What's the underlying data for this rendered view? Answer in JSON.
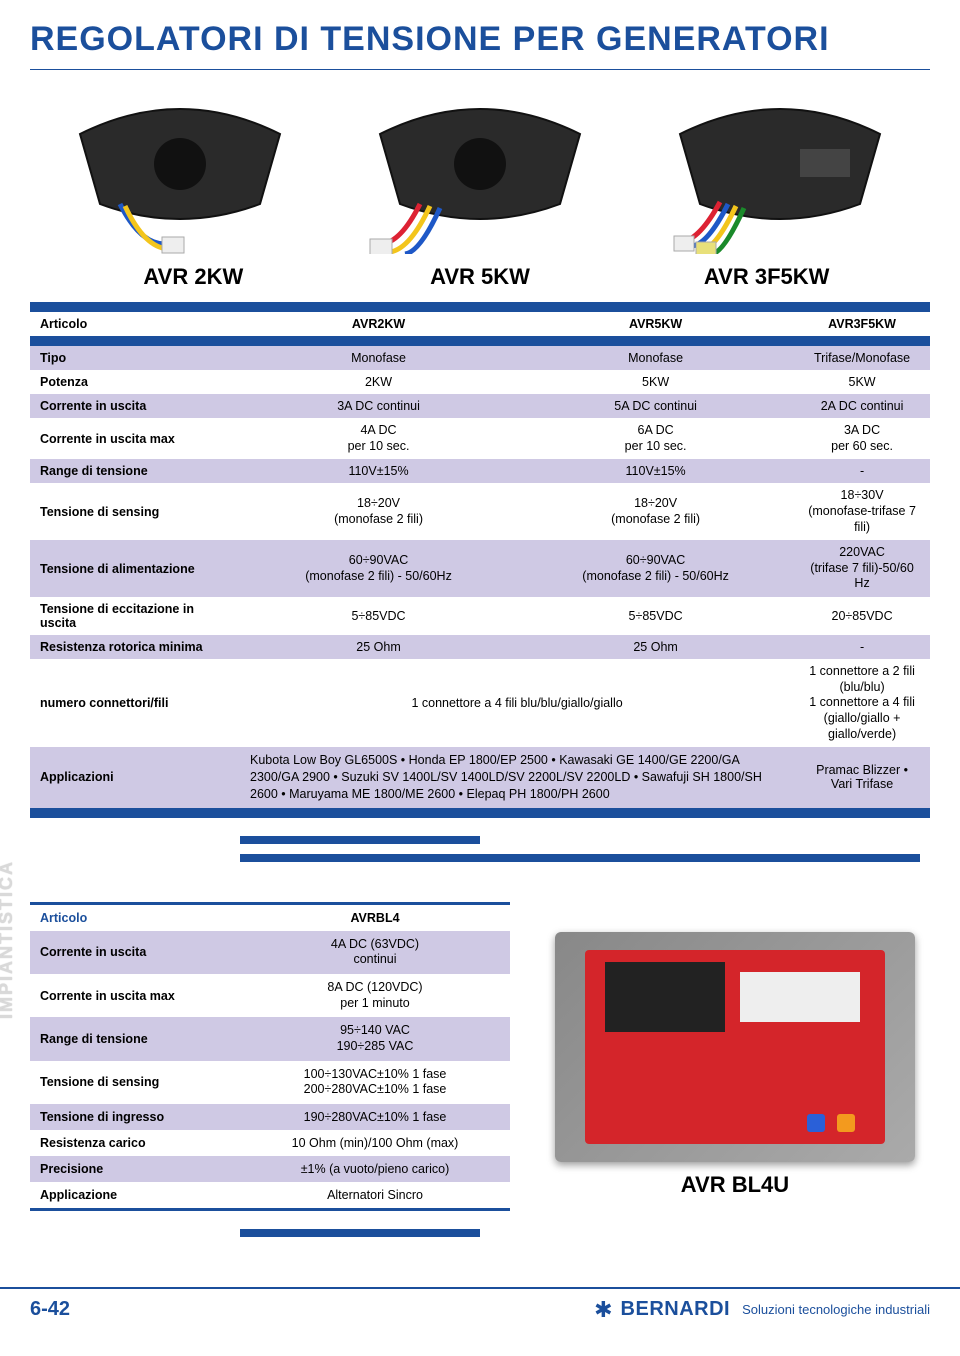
{
  "page_title": "REGOLATORI DI TENSIONE PER GENERATORI",
  "colors": {
    "brand_blue": "#1b4f9c",
    "row_alt": "#cfc9e4",
    "row_white": "#ffffff",
    "board_red": "#d4252a"
  },
  "models": {
    "col1_heading": "AVR 2KW",
    "col2_heading": "AVR 5KW",
    "col3_heading": "AVR 3F5KW"
  },
  "table1": {
    "article_label": "Articolo",
    "article": {
      "c1": "AVR2KW",
      "c2": "AVR5KW",
      "c3": "AVR3F5KW"
    },
    "rows": [
      {
        "label": "Tipo",
        "alt": true,
        "c1": "Monofase",
        "c2": "Monofase",
        "c3": "Trifase/Monofase"
      },
      {
        "label": "Potenza",
        "alt": false,
        "c1": "2KW",
        "c2": "5KW",
        "c3": "5KW"
      },
      {
        "label": "Corrente in uscita",
        "alt": true,
        "c1": "3A DC continui",
        "c2": "5A DC continui",
        "c3": "2A DC continui"
      },
      {
        "label": "Corrente in uscita max",
        "alt": false,
        "two": true,
        "c1a": "4A DC",
        "c1b": "per 10 sec.",
        "c2a": "6A DC",
        "c2b": "per 10 sec.",
        "c3a": "3A DC",
        "c3b": "per 60 sec."
      },
      {
        "label": "Range di tensione",
        "alt": true,
        "c1": "110V±15%",
        "c2": "110V±15%",
        "c3": "-"
      },
      {
        "label": "Tensione di sensing",
        "alt": false,
        "two": true,
        "c1a": "18÷20V",
        "c1b": "(monofase 2 fili)",
        "c2a": "18÷20V",
        "c2b": "(monofase 2 fili)",
        "c3a": "18÷30V",
        "c3b": "(monofase-trifase 7 fili)"
      },
      {
        "label": "Tensione di alimentazione",
        "alt": true,
        "two": true,
        "c1a": "60÷90VAC",
        "c1b": "(monofase 2 fili) - 50/60Hz",
        "c2a": "60÷90VAC",
        "c2b": "(monofase 2 fili) - 50/60Hz",
        "c3a": "220VAC",
        "c3b": "(trifase 7 fili)-50/60 Hz"
      },
      {
        "label": "Tensione di eccitazione in uscita",
        "alt": false,
        "c1": "5÷85VDC",
        "c2": "5÷85VDC",
        "c3": "20÷85VDC"
      },
      {
        "label": "Resistenza rotorica minima",
        "alt": true,
        "c1": "25 Ohm",
        "c2": "25 Ohm",
        "c3": "-"
      }
    ],
    "connectors": {
      "label": "numero connettori/fili",
      "c12": "1 connettore a 4 fili blu/blu/giallo/giallo",
      "c3a": "1 connettore a 2 fili (blu/blu)",
      "c3b": "1 connettore a 4 fili",
      "c3c": "(giallo/giallo + giallo/verde)"
    },
    "apps": {
      "label": "Applicazioni",
      "c12": "Kubota Low Boy GL6500S • Honda EP 1800/EP 2500 • Kawasaki GE 1400/GE 2200/GA 2300/GA 2900 • Suzuki SV 1400L/SV 1400LD/SV 2200L/SV 2200LD • Sawafuji SH 1800/SH 2600 • Maruyama ME 1800/ME 2600 • Elepaq PH 1800/PH 2600",
      "c3": "Pramac Blizzer • Vari Trifase"
    }
  },
  "side_label": "IMPIANTISTICA",
  "table2": {
    "article_label": "Articolo",
    "article_value": "AVRBL4",
    "rows": [
      {
        "label": "Corrente in uscita",
        "alt": true,
        "va": "4A DC (63VDC)",
        "vb": "continui"
      },
      {
        "label": "Corrente in uscita max",
        "alt": false,
        "va": "8A DC (120VDC)",
        "vb": "per 1 minuto"
      },
      {
        "label": "Range di tensione",
        "alt": true,
        "va": "95÷140 VAC",
        "vb": "190÷285 VAC"
      },
      {
        "label": "Tensione di sensing",
        "alt": false,
        "va": "100÷130VAC±10% 1 fase",
        "vb": "200÷280VAC±10% 1 fase"
      },
      {
        "label": "Tensione di ingresso",
        "alt": true,
        "v": "190÷280VAC±10% 1 fase"
      },
      {
        "label": "Resistenza carico",
        "alt": false,
        "v": "10 Ohm (min)/100 Ohm (max)"
      },
      {
        "label": "Precisione",
        "alt": true,
        "v": "±1% (a vuoto/pieno carico)"
      },
      {
        "label": "Applicazione",
        "alt": false,
        "v": "Alternatori Sincro"
      }
    ]
  },
  "avr_bl4_label": "AVR BL4U",
  "footer": {
    "page": "6-42",
    "brand": "BERNARDI",
    "tagline": "Soluzioni tecnologiche industriali"
  }
}
